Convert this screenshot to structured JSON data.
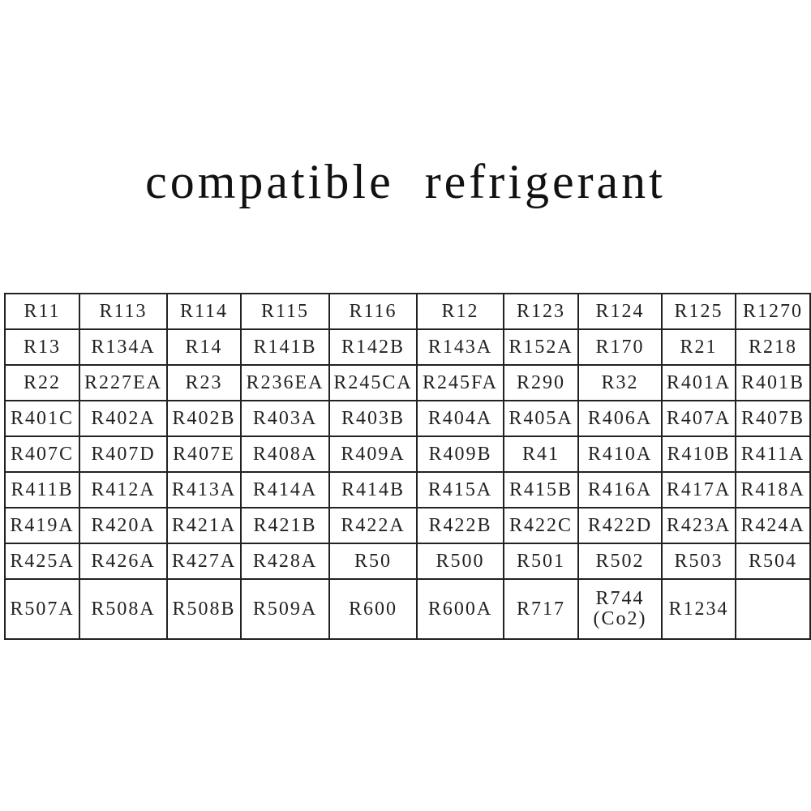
{
  "title": "compatible  refrigerant",
  "table": {
    "rows": [
      [
        "R11",
        "R113",
        "R114",
        "R115",
        "R116",
        "R12",
        "R123",
        "R124",
        "R125",
        "R1270"
      ],
      [
        "R13",
        "R134A",
        "R14",
        "R141B",
        "R142B",
        "R143A",
        "R152A",
        "R170",
        "R21",
        "R218"
      ],
      [
        "R22",
        "R227EA",
        "R23",
        "R236EA",
        "R245CA",
        "R245FA",
        "R290",
        "R32",
        "R401A",
        "R401B"
      ],
      [
        "R401C",
        "R402A",
        "R402B",
        "R403A",
        "R403B",
        "R404A",
        "R405A",
        "R406A",
        "R407A",
        "R407B"
      ],
      [
        "R407C",
        "R407D",
        "R407E",
        "R408A",
        "R409A",
        "R409B",
        "R41",
        "R410A",
        "R410B",
        "R411A"
      ],
      [
        "R411B",
        "R412A",
        "R413A",
        "R414A",
        "R414B",
        "R415A",
        "R415B",
        "R416A",
        "R417A",
        "R418A"
      ],
      [
        "R419A",
        "R420A",
        "R421A",
        "R421B",
        "R422A",
        "R422B",
        "R422C",
        "R422D",
        "R423A",
        "R424A"
      ],
      [
        "R425A",
        "R426A",
        "R427A",
        "R428A",
        "R50",
        "R500",
        "R501",
        "R502",
        "R503",
        "R504"
      ],
      [
        "R507A",
        "R508A",
        "R508B",
        "R509A",
        "R600",
        "R600A",
        "R717",
        "R744\n(Co2)",
        "R1234",
        ""
      ]
    ]
  }
}
